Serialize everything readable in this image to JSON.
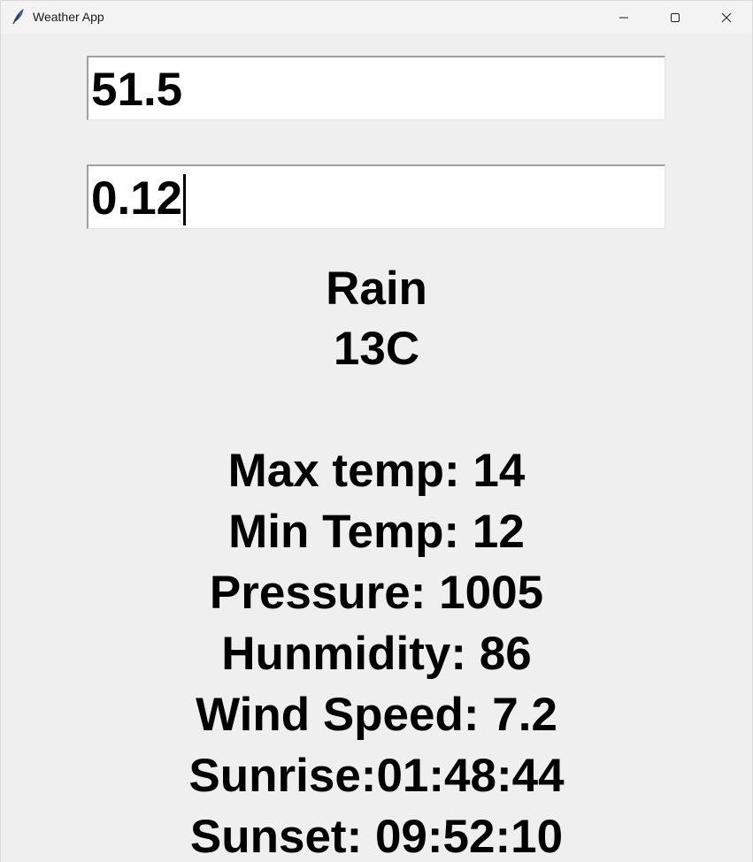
{
  "window": {
    "title": "Weather App",
    "icon": "feather-icon"
  },
  "inputs": {
    "latitude": "51.5",
    "longitude": "0.12"
  },
  "weather": {
    "condition": "Rain",
    "temperature": "13C",
    "max_temp": "Max temp: 14",
    "min_temp": "Min Temp: 12",
    "pressure": "Pressure: 1005",
    "humidity": "Hunmidity: 86",
    "wind_speed": "Wind Speed: 7.2",
    "sunrise": "Sunrise:01:48:44",
    "sunset": "Sunset: 09:52:10"
  }
}
